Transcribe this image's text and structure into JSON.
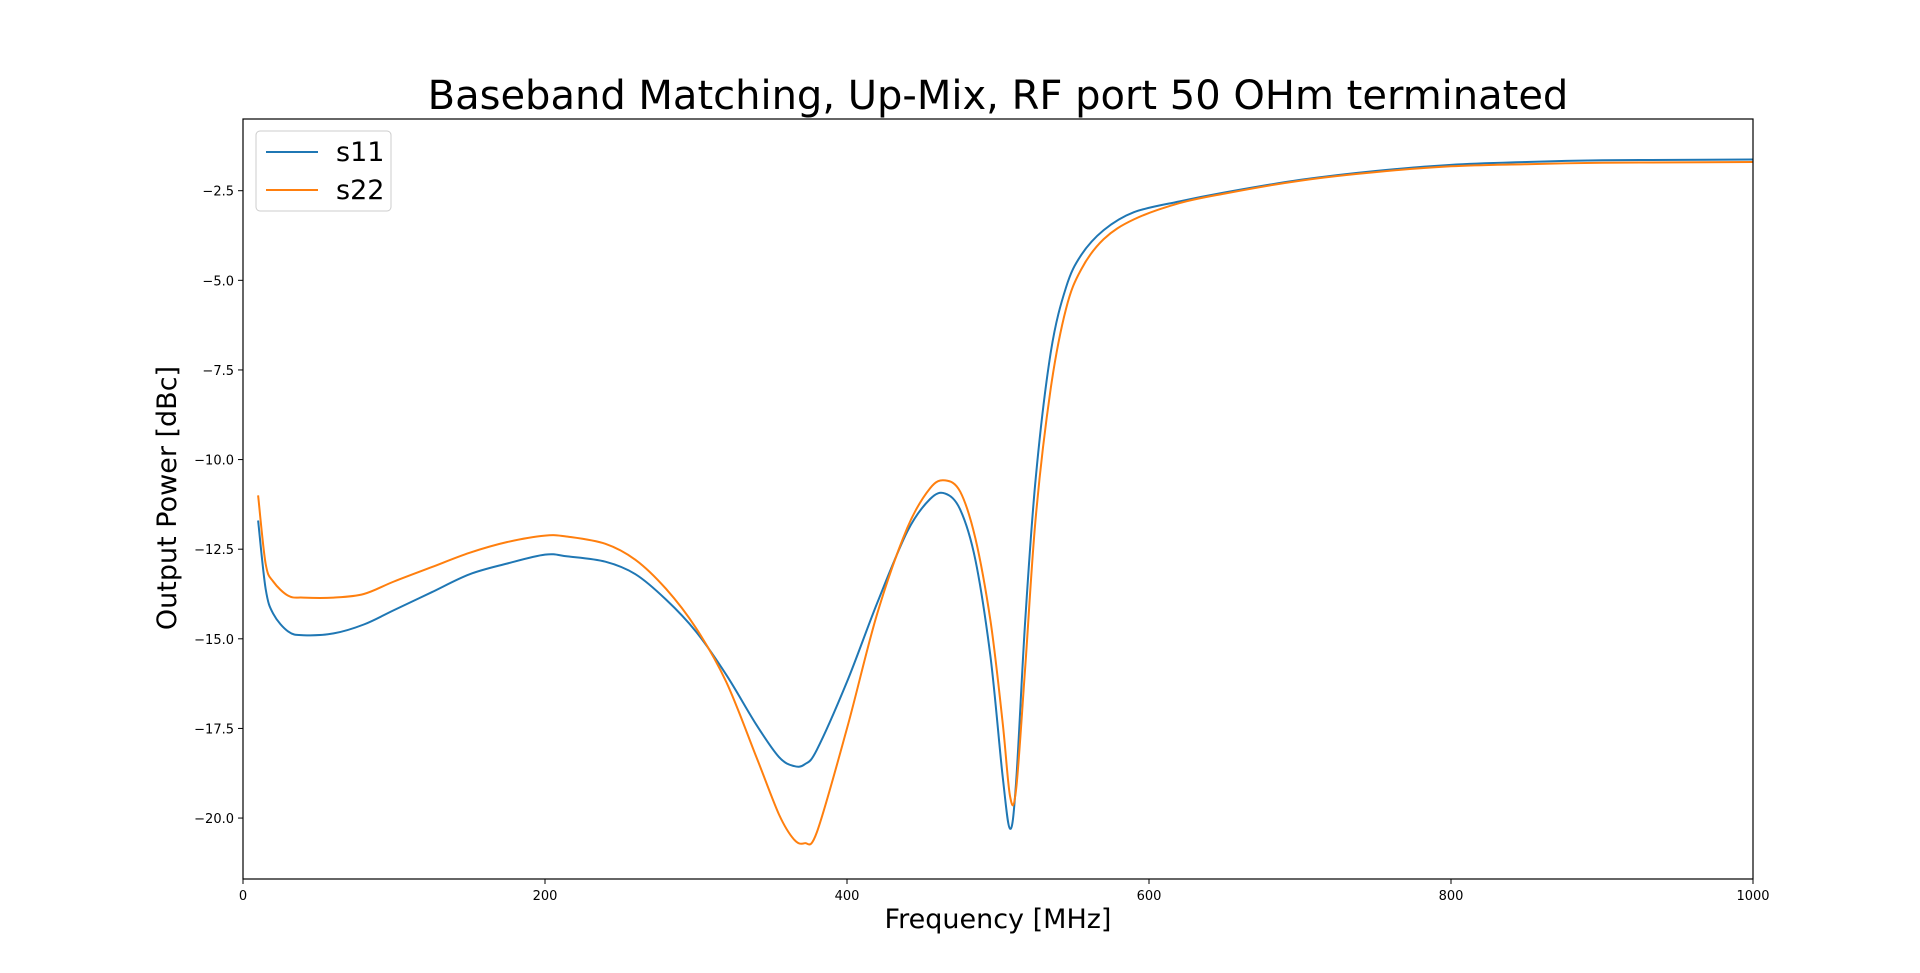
{
  "chart_data": {
    "type": "line",
    "title": "Baseband Matching, Up-Mix, RF port 50 OHm terminated",
    "xlabel": "Frequency [MHz]",
    "ylabel": "Output Power [dBc]",
    "xlim": [
      0,
      1000
    ],
    "ylim": [
      -21.7,
      -0.5
    ],
    "xticks": [
      0,
      200,
      400,
      600,
      800,
      1000
    ],
    "xtick_labels": [
      "0",
      "200",
      "400",
      "600",
      "800",
      "1000"
    ],
    "yticks": [
      -20.0,
      -17.5,
      -15.0,
      -12.5,
      -10.0,
      -7.5,
      -5.0,
      -2.5
    ],
    "ytick_labels": [
      "−20.0",
      "−17.5",
      "−15.0",
      "−12.5",
      "−10.0",
      "−7.5",
      "−5.0",
      "−2.5"
    ],
    "grid": false,
    "legend": "upper left",
    "series": [
      {
        "name": "s11",
        "color": "#1f77b4",
        "x": [
          10,
          15,
          20,
          30,
          40,
          60,
          80,
          100,
          125,
          150,
          175,
          200,
          215,
          240,
          260,
          280,
          300,
          320,
          340,
          355,
          365,
          372,
          380,
          400,
          420,
          440,
          455,
          465,
          475,
          485,
          495,
          503,
          508,
          512,
          518,
          525,
          535,
          545,
          555,
          570,
          590,
          620,
          650,
          700,
          750,
          800,
          850,
          900,
          950,
          1000
        ],
        "y": [
          -11.7,
          -13.6,
          -14.3,
          -14.8,
          -14.9,
          -14.85,
          -14.6,
          -14.2,
          -13.7,
          -13.2,
          -12.9,
          -12.65,
          -12.7,
          -12.85,
          -13.2,
          -13.9,
          -14.8,
          -16.0,
          -17.4,
          -18.3,
          -18.55,
          -18.5,
          -18.1,
          -16.2,
          -14.0,
          -12.0,
          -11.1,
          -10.95,
          -11.4,
          -12.8,
          -15.5,
          -18.8,
          -20.3,
          -19.0,
          -14.5,
          -10.5,
          -7.0,
          -5.2,
          -4.3,
          -3.6,
          -3.1,
          -2.8,
          -2.55,
          -2.2,
          -1.95,
          -1.78,
          -1.7,
          -1.65,
          -1.64,
          -1.63
        ]
      },
      {
        "name": "s22",
        "color": "#ff7f0e",
        "x": [
          10,
          15,
          20,
          30,
          40,
          60,
          80,
          100,
          125,
          150,
          175,
          200,
          215,
          240,
          260,
          280,
          300,
          320,
          340,
          355,
          365,
          372,
          380,
          400,
          420,
          440,
          455,
          465,
          475,
          485,
          495,
          503,
          508,
          512,
          518,
          525,
          535,
          545,
          555,
          570,
          590,
          620,
          650,
          700,
          750,
          800,
          850,
          900,
          950,
          1000
        ],
        "y": [
          -11.0,
          -12.9,
          -13.4,
          -13.8,
          -13.85,
          -13.85,
          -13.75,
          -13.4,
          -13.0,
          -12.6,
          -12.3,
          -12.12,
          -12.15,
          -12.35,
          -12.8,
          -13.6,
          -14.7,
          -16.2,
          -18.3,
          -19.9,
          -20.6,
          -20.7,
          -20.4,
          -17.5,
          -14.3,
          -11.9,
          -10.8,
          -10.58,
          -10.9,
          -12.2,
          -14.5,
          -17.3,
          -19.4,
          -19.2,
          -15.8,
          -11.6,
          -8.0,
          -5.8,
          -4.7,
          -3.85,
          -3.3,
          -2.85,
          -2.58,
          -2.22,
          -1.98,
          -1.82,
          -1.76,
          -1.72,
          -1.71,
          -1.7
        ]
      }
    ]
  }
}
